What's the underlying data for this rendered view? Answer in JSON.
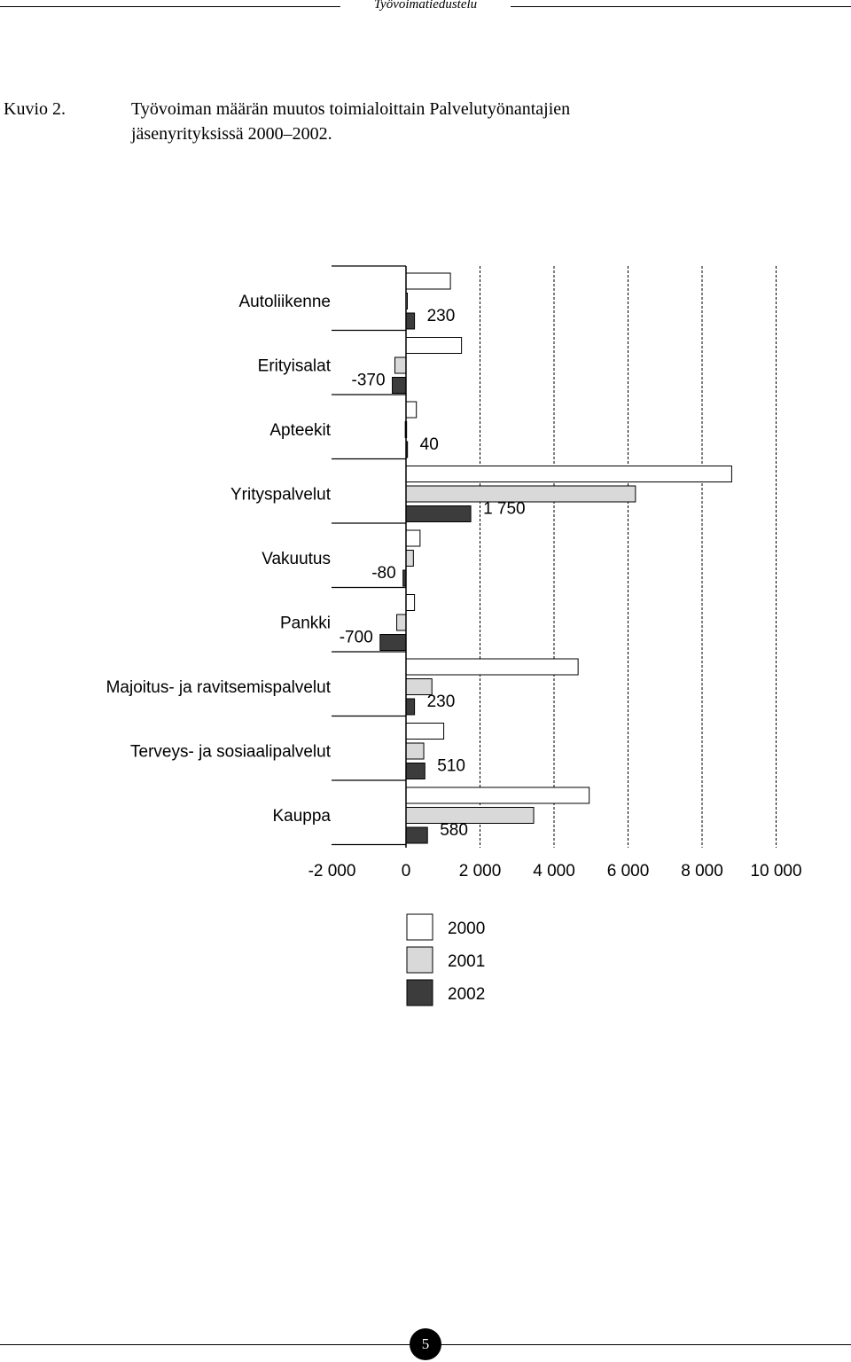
{
  "header": {
    "running_title": "Työvoimatiedustelu"
  },
  "caption": {
    "label": "Kuvio 2.",
    "title_line1": "Työvoiman määrän muutos toimialoittain Palvelutyönantajien",
    "title_line2": "jäsenyrityksissä 2000–2002."
  },
  "chart_data": {
    "type": "bar",
    "orientation": "horizontal",
    "categories": [
      "Autoliikenne",
      "Erityisalat",
      "Apteekit",
      "Yrityspalvelut",
      "Vakuutus",
      "Pankki",
      "Majoitus- ja ravitsemispalvelut",
      "Terveys- ja sosiaalipalvelut",
      "Kauppa"
    ],
    "series": [
      {
        "name": "2000",
        "color": "#ffffff",
        "values": [
          1200,
          1500,
          280,
          8800,
          380,
          230,
          4650,
          1020,
          4950
        ]
      },
      {
        "name": "2001",
        "color": "#d9d9d9",
        "values": [
          20,
          -300,
          -20,
          6200,
          200,
          -250,
          700,
          480,
          3450
        ]
      },
      {
        "name": "2002",
        "color": "#3c3c3c",
        "values": [
          230,
          -370,
          40,
          1750,
          -80,
          -700,
          230,
          510,
          580
        ]
      }
    ],
    "data_labels": [
      "230",
      "-370",
      "40",
      "1 750",
      "-80",
      "-700",
      "230",
      "510",
      "580"
    ],
    "xlim": [
      -2000,
      10000
    ],
    "xticks": [
      -2000,
      0,
      2000,
      4000,
      6000,
      8000,
      10000
    ],
    "xtick_labels": [
      "-2 000",
      "0",
      "2 000",
      "4 000",
      "6 000",
      "8 000",
      "10 000"
    ],
    "grid": "vertical dashed",
    "legend_placement": "bottom-center"
  },
  "footer": {
    "page_number": "5"
  }
}
